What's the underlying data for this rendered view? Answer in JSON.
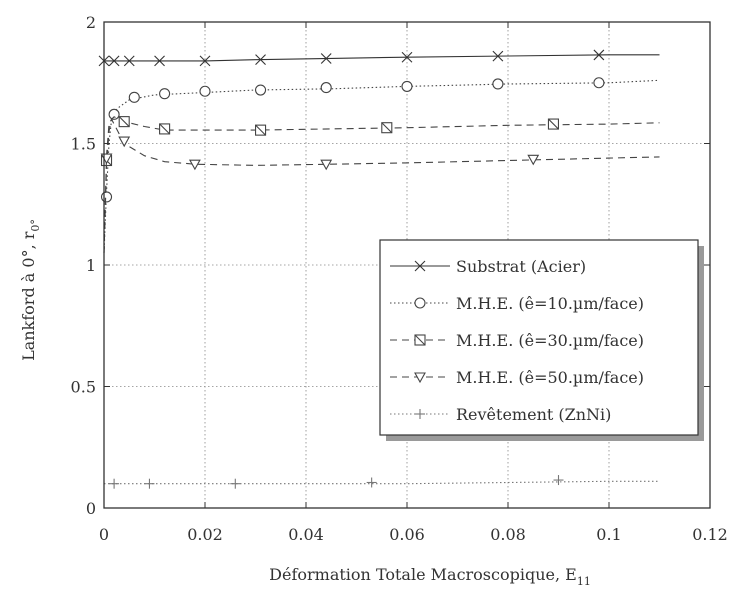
{
  "chart_data": {
    "type": "line",
    "title": "",
    "xlabel": "Déformation Totale Macroscopique, E",
    "xlabel_sub": "11",
    "ylabel": "Lankford à 0°, r",
    "ylabel_sub": "0°",
    "xlim": [
      0,
      0.12
    ],
    "ylim": [
      0,
      2
    ],
    "xticks": [
      0,
      0.02,
      0.04,
      0.06,
      0.08,
      0.1,
      0.12
    ],
    "xtick_labels": [
      "0",
      "0.02",
      "0.04",
      "0.06",
      "0.08",
      "0.1",
      "0.12"
    ],
    "yticks": [
      0,
      0.5,
      1,
      1.5,
      2
    ],
    "ytick_labels": [
      "0",
      "0.5",
      "1",
      "1.5",
      "2"
    ],
    "grid": true,
    "legend_position": "center-right",
    "series": [
      {
        "name": "Substrat (Acier)",
        "marker": "x",
        "dash": "solid",
        "color": "#333333",
        "x": [
          0,
          0.002,
          0.005,
          0.01,
          0.02,
          0.03,
          0.045,
          0.06,
          0.08,
          0.1,
          0.11
        ],
        "y": [
          1.84,
          1.84,
          1.84,
          1.84,
          1.84,
          1.845,
          1.85,
          1.855,
          1.86,
          1.865,
          1.865
        ],
        "marker_x": [
          0,
          0.002,
          0.005,
          0.011,
          0.02,
          0.031,
          0.044,
          0.06,
          0.078,
          0.098
        ]
      },
      {
        "name": "M.H.E. (ê=10.µm/face)",
        "marker": "o",
        "dash": "dotted",
        "color": "#444444",
        "x": [
          0,
          0.0005,
          0.001,
          0.0015,
          0.002,
          0.003,
          0.005,
          0.01,
          0.02,
          0.03,
          0.045,
          0.06,
          0.08,
          0.1,
          0.11
        ],
        "y": [
          1.05,
          1.3,
          1.5,
          1.6,
          1.63,
          1.65,
          1.68,
          1.7,
          1.71,
          1.72,
          1.725,
          1.735,
          1.745,
          1.75,
          1.76
        ],
        "marker_x": [
          0.0005,
          0.002,
          0.006,
          0.012,
          0.02,
          0.031,
          0.044,
          0.06,
          0.078,
          0.098
        ],
        "marker_y": [
          1.28,
          1.62,
          1.69,
          1.705,
          1.715,
          1.72,
          1.73,
          1.735,
          1.745,
          1.75
        ]
      },
      {
        "name": "M.H.E. (ê=30.µm/face)",
        "marker": "square-x",
        "dash": "dashed",
        "color": "#444444",
        "x": [
          0,
          0.0005,
          0.001,
          0.0015,
          0.002,
          0.004,
          0.008,
          0.012,
          0.02,
          0.03,
          0.045,
          0.06,
          0.08,
          0.1,
          0.11
        ],
        "y": [
          1.05,
          1.4,
          1.55,
          1.6,
          1.61,
          1.59,
          1.57,
          1.555,
          1.555,
          1.555,
          1.56,
          1.565,
          1.575,
          1.58,
          1.585
        ],
        "marker_x": [
          0.0005,
          0.004,
          0.012,
          0.031,
          0.056,
          0.089
        ],
        "marker_y": [
          1.43,
          1.59,
          1.56,
          1.555,
          1.565,
          1.58
        ]
      },
      {
        "name": "M.H.E. (ê=50.µm/face)",
        "marker": "triangle-down",
        "dash": "dashed",
        "color": "#444444",
        "x": [
          0,
          0.0005,
          0.001,
          0.0015,
          0.002,
          0.004,
          0.008,
          0.012,
          0.018,
          0.03,
          0.045,
          0.06,
          0.08,
          0.1,
          0.11
        ],
        "y": [
          1.05,
          1.45,
          1.58,
          1.6,
          1.58,
          1.5,
          1.45,
          1.425,
          1.415,
          1.41,
          1.415,
          1.42,
          1.43,
          1.44,
          1.445
        ],
        "marker_x": [
          0.0005,
          0.004,
          0.018,
          0.044,
          0.085
        ],
        "marker_y": [
          1.44,
          1.51,
          1.415,
          1.415,
          1.435
        ]
      },
      {
        "name": "Revêtement (ZnNi)",
        "marker": "+",
        "dash": "dotted",
        "color": "#777777",
        "x": [
          0,
          0.02,
          0.04,
          0.06,
          0.08,
          0.1,
          0.11
        ],
        "y": [
          0.1,
          0.1,
          0.1,
          0.1,
          0.105,
          0.11,
          0.11
        ],
        "marker_x": [
          0.002,
          0.009,
          0.026,
          0.053,
          0.09
        ],
        "marker_y": [
          0.1,
          0.1,
          0.1,
          0.105,
          0.115
        ]
      }
    ]
  }
}
